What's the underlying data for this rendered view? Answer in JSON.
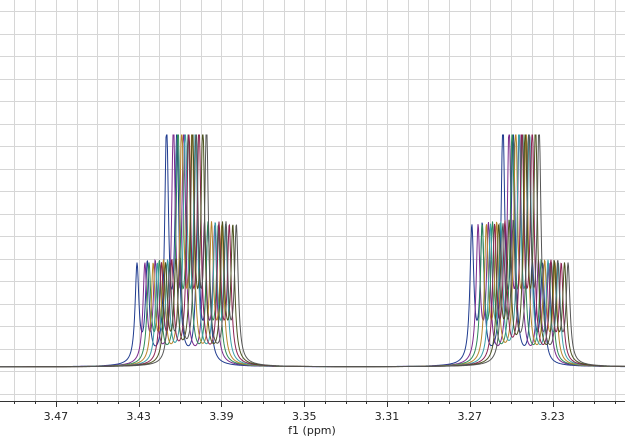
{
  "chart_data": {
    "type": "line",
    "title": "",
    "xlabel": "f1 (ppm)",
    "ylabel": "",
    "x_reversed": true,
    "xlim": [
      3.195,
      3.497
    ],
    "ylim": [
      0,
      1
    ],
    "grid": true,
    "x_ticks": [
      3.47,
      3.43,
      3.39,
      3.35,
      3.31,
      3.27,
      3.23
    ],
    "x_tick_labels": [
      "3.47",
      "3.43",
      "3.39",
      "3.35",
      "3.31",
      "3.27",
      "3.23"
    ],
    "peak_width_ppm": 0.0022,
    "baseline": 0.0,
    "series": [
      {
        "color": "#1f3b8f",
        "peaks": [
          [
            3.4308,
            0.42
          ],
          [
            3.4258,
            0.42
          ],
          [
            3.4165,
            1.0
          ],
          [
            3.4115,
            0.99
          ],
          [
            3.4015,
            0.58
          ],
          [
            3.3965,
            0.58
          ],
          [
            3.269,
            0.58
          ],
          [
            3.264,
            0.58
          ],
          [
            3.254,
            1.0
          ],
          [
            3.249,
            1.0
          ],
          [
            3.2398,
            0.42
          ],
          [
            3.2348,
            0.42
          ]
        ]
      },
      {
        "color": "#7a2a8c",
        "peaks": [
          [
            3.427,
            0.42
          ],
          [
            3.422,
            0.42
          ],
          [
            3.4132,
            1.0
          ],
          [
            3.4082,
            1.0
          ],
          [
            3.3982,
            0.58
          ],
          [
            3.3932,
            0.58
          ],
          [
            3.266,
            0.58
          ],
          [
            3.261,
            0.58
          ],
          [
            3.251,
            1.0
          ],
          [
            3.246,
            1.0
          ],
          [
            3.2368,
            0.42
          ],
          [
            3.2318,
            0.42
          ]
        ]
      },
      {
        "color": "#2e8b57",
        "peaks": [
          [
            3.425,
            0.42
          ],
          [
            3.42,
            0.42
          ],
          [
            3.411,
            1.0
          ],
          [
            3.406,
            1.0
          ],
          [
            3.3965,
            0.58
          ],
          [
            3.3915,
            0.58
          ],
          [
            3.264,
            0.58
          ],
          [
            3.259,
            0.58
          ],
          [
            3.2495,
            1.0
          ],
          [
            3.2445,
            1.0
          ],
          [
            3.2355,
            0.42
          ],
          [
            3.2305,
            0.42
          ]
        ]
      },
      {
        "color": "#b8862b",
        "peaks": [
          [
            3.423,
            0.42
          ],
          [
            3.418,
            0.42
          ],
          [
            3.4092,
            1.0
          ],
          [
            3.4042,
            1.0
          ],
          [
            3.3948,
            0.58
          ],
          [
            3.3898,
            0.58
          ],
          [
            3.262,
            0.58
          ],
          [
            3.257,
            0.58
          ],
          [
            3.2478,
            1.0
          ],
          [
            3.2428,
            1.0
          ],
          [
            3.2338,
            0.42
          ],
          [
            3.2288,
            0.42
          ]
        ]
      },
      {
        "color": "#3aa0a8",
        "peaks": [
          [
            3.421,
            0.42
          ],
          [
            3.416,
            0.42
          ],
          [
            3.4075,
            1.0
          ],
          [
            3.4025,
            1.0
          ],
          [
            3.393,
            0.58
          ],
          [
            3.388,
            0.58
          ],
          [
            3.26,
            0.58
          ],
          [
            3.255,
            0.58
          ],
          [
            3.2462,
            1.0
          ],
          [
            3.2412,
            1.0
          ],
          [
            3.2322,
            0.42
          ],
          [
            3.2272,
            0.42
          ]
        ]
      },
      {
        "color": "#8b2252",
        "peaks": [
          [
            3.419,
            0.42
          ],
          [
            3.414,
            0.42
          ],
          [
            3.4058,
            1.0
          ],
          [
            3.4008,
            1.0
          ],
          [
            3.3912,
            0.58
          ],
          [
            3.3862,
            0.58
          ],
          [
            3.258,
            0.58
          ],
          [
            3.253,
            0.58
          ],
          [
            3.2448,
            1.0
          ],
          [
            3.2398,
            1.0
          ],
          [
            3.2308,
            0.42
          ],
          [
            3.2258,
            0.42
          ]
        ]
      },
      {
        "color": "#4b5320",
        "peaks": [
          [
            3.417,
            0.42
          ],
          [
            3.412,
            0.42
          ],
          [
            3.404,
            1.0
          ],
          [
            3.399,
            1.0
          ],
          [
            3.3895,
            0.58
          ],
          [
            3.3845,
            0.58
          ],
          [
            3.256,
            0.58
          ],
          [
            3.251,
            0.58
          ],
          [
            3.2432,
            1.0
          ],
          [
            3.2382,
            1.0
          ],
          [
            3.2292,
            0.42
          ],
          [
            3.2242,
            0.42
          ]
        ]
      },
      {
        "color": "#555555",
        "peaks": [
          [
            3.415,
            0.42
          ],
          [
            3.41,
            0.42
          ],
          [
            3.4022,
            1.0
          ],
          [
            3.3972,
            1.0
          ],
          [
            3.3878,
            0.58
          ],
          [
            3.3828,
            0.58
          ],
          [
            3.254,
            0.58
          ],
          [
            3.249,
            0.58
          ],
          [
            3.2415,
            1.0
          ],
          [
            3.2365,
            1.0
          ],
          [
            3.2275,
            0.42
          ],
          [
            3.2225,
            0.42
          ]
        ]
      }
    ]
  }
}
